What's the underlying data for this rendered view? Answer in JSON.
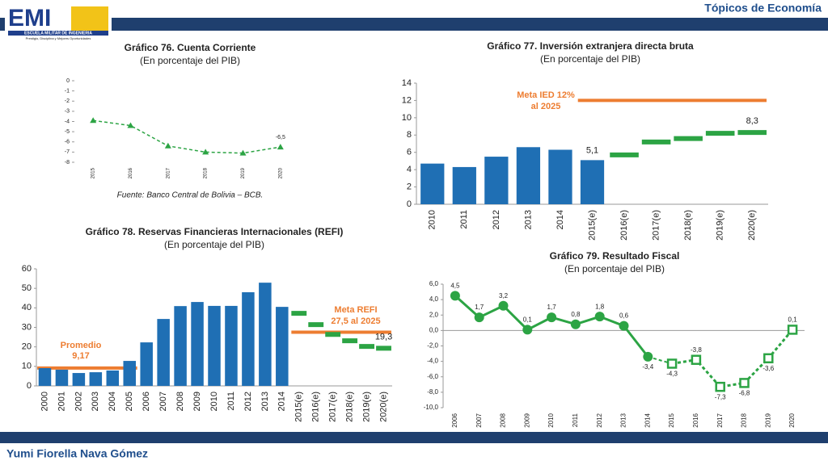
{
  "header": {
    "logo": "EMI",
    "school": "ESCUELA MILITAR DE INGENIERIA",
    "motto": "Prestigio, Disciplina y Mejores Oportunidades",
    "section": "Tópicos de Economía"
  },
  "footer": {
    "author": "Yumi Fiorella Nava Gómez"
  },
  "chart_data": [
    {
      "type": "line",
      "title": "Gráfico 76. Cuenta Corriente",
      "subtitle": "(En porcentaje del PIB)",
      "source": "Fuente: Banco Central de Bolivia – BCB.",
      "categories": [
        "2015",
        "2016",
        "2017",
        "2018",
        "2019",
        "2020"
      ],
      "series": [
        {
          "color": "#2ca444",
          "values": [
            -3.9,
            -4.4,
            -6.4,
            -7.0,
            -7.1,
            -6.5
          ],
          "value_labels": [
            null,
            null,
            null,
            null,
            null,
            "-6,5"
          ],
          "dashed": true,
          "marker": "triangle"
        }
      ],
      "ylim": [
        -8,
        0
      ],
      "yticks": [
        0,
        -1,
        -2,
        -3,
        -4,
        -5,
        -6,
        -7,
        -8
      ]
    },
    {
      "type": "bar",
      "title": "Gráfico 77. Inversión extranjera directa bruta",
      "subtitle": "(En porcentaje del PIB)",
      "categories": [
        "2010",
        "2011",
        "2012",
        "2013",
        "2014",
        "2015(e)",
        "2016(e)",
        "2017(e)",
        "2018(e)",
        "2019(e)",
        "2020(e)"
      ],
      "series": [
        {
          "color": "#1f6fb4",
          "kind": "bar",
          "values": [
            4.7,
            4.3,
            5.5,
            6.6,
            6.3,
            5.1,
            null,
            null,
            null,
            null,
            null
          ],
          "value_labels": [
            null,
            null,
            null,
            null,
            null,
            "5,1",
            null,
            null,
            null,
            null,
            null
          ]
        },
        {
          "color": "#2ca444",
          "kind": "dash",
          "values": [
            null,
            null,
            null,
            null,
            null,
            null,
            5.7,
            7.2,
            7.6,
            8.2,
            8.3
          ],
          "value_labels": [
            null,
            null,
            null,
            null,
            null,
            null,
            null,
            null,
            null,
            null,
            "8,3"
          ]
        }
      ],
      "reference_lines": [
        {
          "value": 12,
          "categories": [
            "2015(e)",
            "2020(e)"
          ],
          "color": "#ed7d31"
        }
      ],
      "annotations": [
        "Meta IED 12%",
        "al 2025"
      ],
      "ylim": [
        0,
        14
      ],
      "yticks": [
        0,
        2,
        4,
        6,
        8,
        10,
        12,
        14
      ]
    },
    {
      "type": "bar",
      "title": "Gráfico 78. Reservas Financieras Internacionales (REFI)",
      "subtitle": "(En porcentaje del PIB)",
      "categories": [
        "2000",
        "2001",
        "2002",
        "2003",
        "2004",
        "2005",
        "2006",
        "2007",
        "2008",
        "2009",
        "2010",
        "2011",
        "2012",
        "2013",
        "2014",
        "2015(e)",
        "2016(e)",
        "2017(e)",
        "2018(e)",
        "2019(e)",
        "2020(e)"
      ],
      "series": [
        {
          "color": "#1f6fb4",
          "kind": "bar",
          "values": [
            9.1,
            8.3,
            6.6,
            7.0,
            7.9,
            12.8,
            22.3,
            34.3,
            40.9,
            43.0,
            41.0,
            41.0,
            48.0,
            52.9,
            40.5,
            null,
            null,
            null,
            null,
            null,
            null
          ]
        },
        {
          "color": "#2ca444",
          "kind": "dash",
          "values": [
            null,
            null,
            null,
            null,
            null,
            null,
            null,
            null,
            null,
            null,
            null,
            null,
            null,
            null,
            null,
            37.2,
            31.4,
            26.4,
            23.1,
            20.2,
            19.3
          ],
          "value_labels": [
            null,
            null,
            null,
            null,
            null,
            null,
            null,
            null,
            null,
            null,
            null,
            null,
            null,
            null,
            null,
            null,
            null,
            null,
            null,
            null,
            "19,3"
          ]
        }
      ],
      "reference_lines": [
        {
          "value": 9.17,
          "categories": [
            "2000",
            "2005"
          ],
          "color": "#ed7d31"
        },
        {
          "value": 27.5,
          "categories": [
            "2015(e)",
            "2020(e)"
          ],
          "color": "#ed7d31"
        }
      ],
      "annotations": [
        "Promedio",
        "9,17",
        "Meta REFI",
        "27,5 al 2025"
      ],
      "ylim": [
        0,
        60
      ],
      "yticks": [
        0,
        10,
        20,
        30,
        40,
        50,
        60
      ]
    },
    {
      "type": "line",
      "title": "Gráfico 79. Resultado Fiscal",
      "subtitle": "(En porcentaje del PIB)",
      "categories": [
        "2006",
        "2007",
        "2008",
        "2009",
        "2010",
        "2011",
        "2012",
        "2013",
        "2014",
        "2015",
        "2016",
        "2017",
        "2018",
        "2019",
        "2020"
      ],
      "series": [
        {
          "color": "#2ca444",
          "marker": "circle",
          "values": [
            4.5,
            1.7,
            3.2,
            0.1,
            1.7,
            0.8,
            1.8,
            0.6,
            -3.4,
            null,
            null,
            null,
            null,
            null,
            null
          ],
          "value_labels": [
            "4,5",
            "1,7",
            "3,2",
            "0,1",
            "1,7",
            "0,8",
            "1,8",
            "0,6",
            "-3,4",
            null,
            null,
            null,
            null,
            null,
            null
          ]
        },
        {
          "color": "#2ca444",
          "marker": "square",
          "dashed": true,
          "values": [
            null,
            null,
            null,
            null,
            null,
            null,
            null,
            null,
            null,
            -4.3,
            -3.8,
            -7.3,
            -6.8,
            -3.6,
            0.1
          ],
          "value_labels": [
            null,
            null,
            null,
            null,
            null,
            null,
            null,
            null,
            null,
            "-4,3",
            "-3,8",
            "-7,3",
            "-6,8",
            "-3,6",
            "0,1"
          ]
        }
      ],
      "ylim": [
        -10,
        6
      ],
      "yticks": [
        {
          "value": 6,
          "label": "6,0"
        },
        {
          "value": 4,
          "label": "4,0"
        },
        {
          "value": 2,
          "label": "2,0"
        },
        {
          "value": 0,
          "label": "0,0"
        },
        {
          "value": -2,
          "label": "-2,0"
        },
        {
          "value": -4,
          "label": "-4,0"
        },
        {
          "value": -6,
          "label": "-6,0"
        },
        {
          "value": -8,
          "label": "-8,0"
        },
        {
          "value": -10,
          "label": "-10,0"
        }
      ]
    }
  ]
}
